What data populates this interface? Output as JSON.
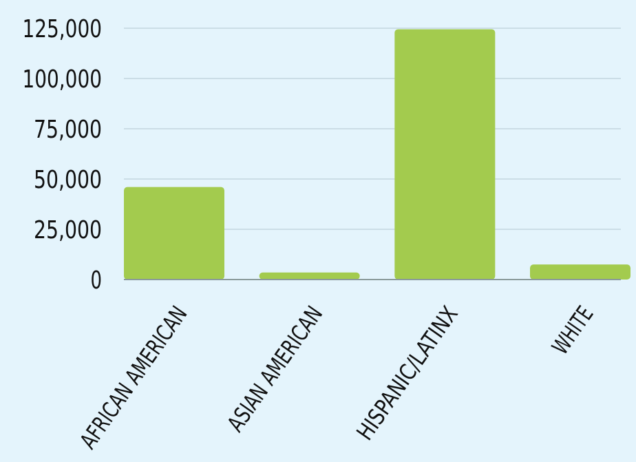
{
  "chart_data": {
    "type": "bar",
    "title": "",
    "xlabel": "",
    "ylabel": "",
    "categories": [
      "AFRICAN AMERICAN",
      "ASIAN AMERICAN",
      "HISPANIC/LATINX",
      "WHITE"
    ],
    "values": [
      46000,
      3500,
      124500,
      7500
    ],
    "ylim": [
      0,
      125000
    ],
    "yticks": [
      0,
      25000,
      50000,
      75000,
      100000,
      125000
    ],
    "ytick_labels": [
      "0",
      "25,000",
      "50,000",
      "75,000",
      "100,000",
      "125,000"
    ],
    "grid": true,
    "legend": "none",
    "colors": {
      "bar": "#a3cb4e",
      "grid": "#cbdde6",
      "background": "#e4f4fc",
      "baseline": "#8a9a9a",
      "text": "#111111"
    }
  }
}
